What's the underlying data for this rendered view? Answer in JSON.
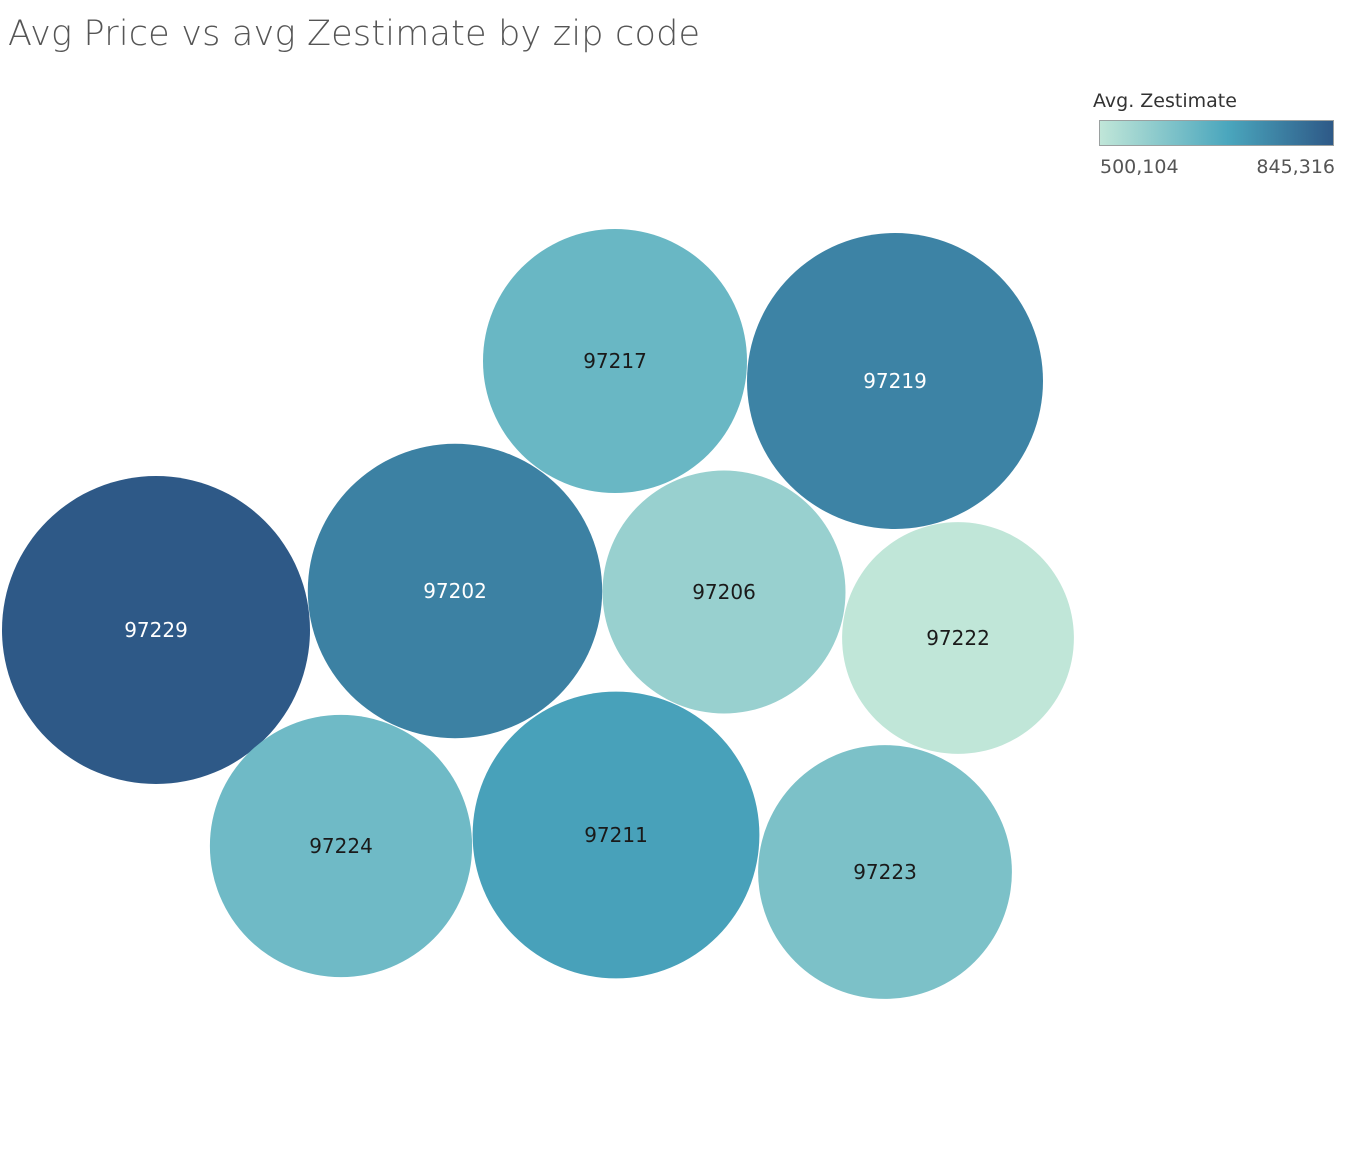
{
  "chart_data": {
    "type": "bubble",
    "title": "Avg Price vs avg Zestimate by zip code",
    "legend": {
      "title": "Avg. Zestimate",
      "min_label": "500,104",
      "max_label": "845,316",
      "min": 500104,
      "max": 845316,
      "placement": "top-right",
      "colors": [
        "#c0e6d8",
        "#4aa6bd",
        "#2e5987"
      ]
    },
    "bubbles": [
      {
        "zip": "97217",
        "avg_price": 720000,
        "avg_zestimate": 640000
      },
      {
        "zip": "97219",
        "avg_price": 905000,
        "avg_zestimate": 760000
      },
      {
        "zip": "97202",
        "avg_price": 895000,
        "avg_zestimate": 765000
      },
      {
        "zip": "97229",
        "avg_price": 980000,
        "avg_zestimate": 845316
      },
      {
        "zip": "97206",
        "avg_price": 610000,
        "avg_zestimate": 565000
      },
      {
        "zip": "97222",
        "avg_price": 555000,
        "avg_zestimate": 500104
      },
      {
        "zip": "97224",
        "avg_price": 710000,
        "avg_zestimate": 630000
      },
      {
        "zip": "97211",
        "avg_price": 850000,
        "avg_zestimate": 700000
      },
      {
        "zip": "97223",
        "avg_price": 665000,
        "avg_zestimate": 610000
      }
    ]
  }
}
